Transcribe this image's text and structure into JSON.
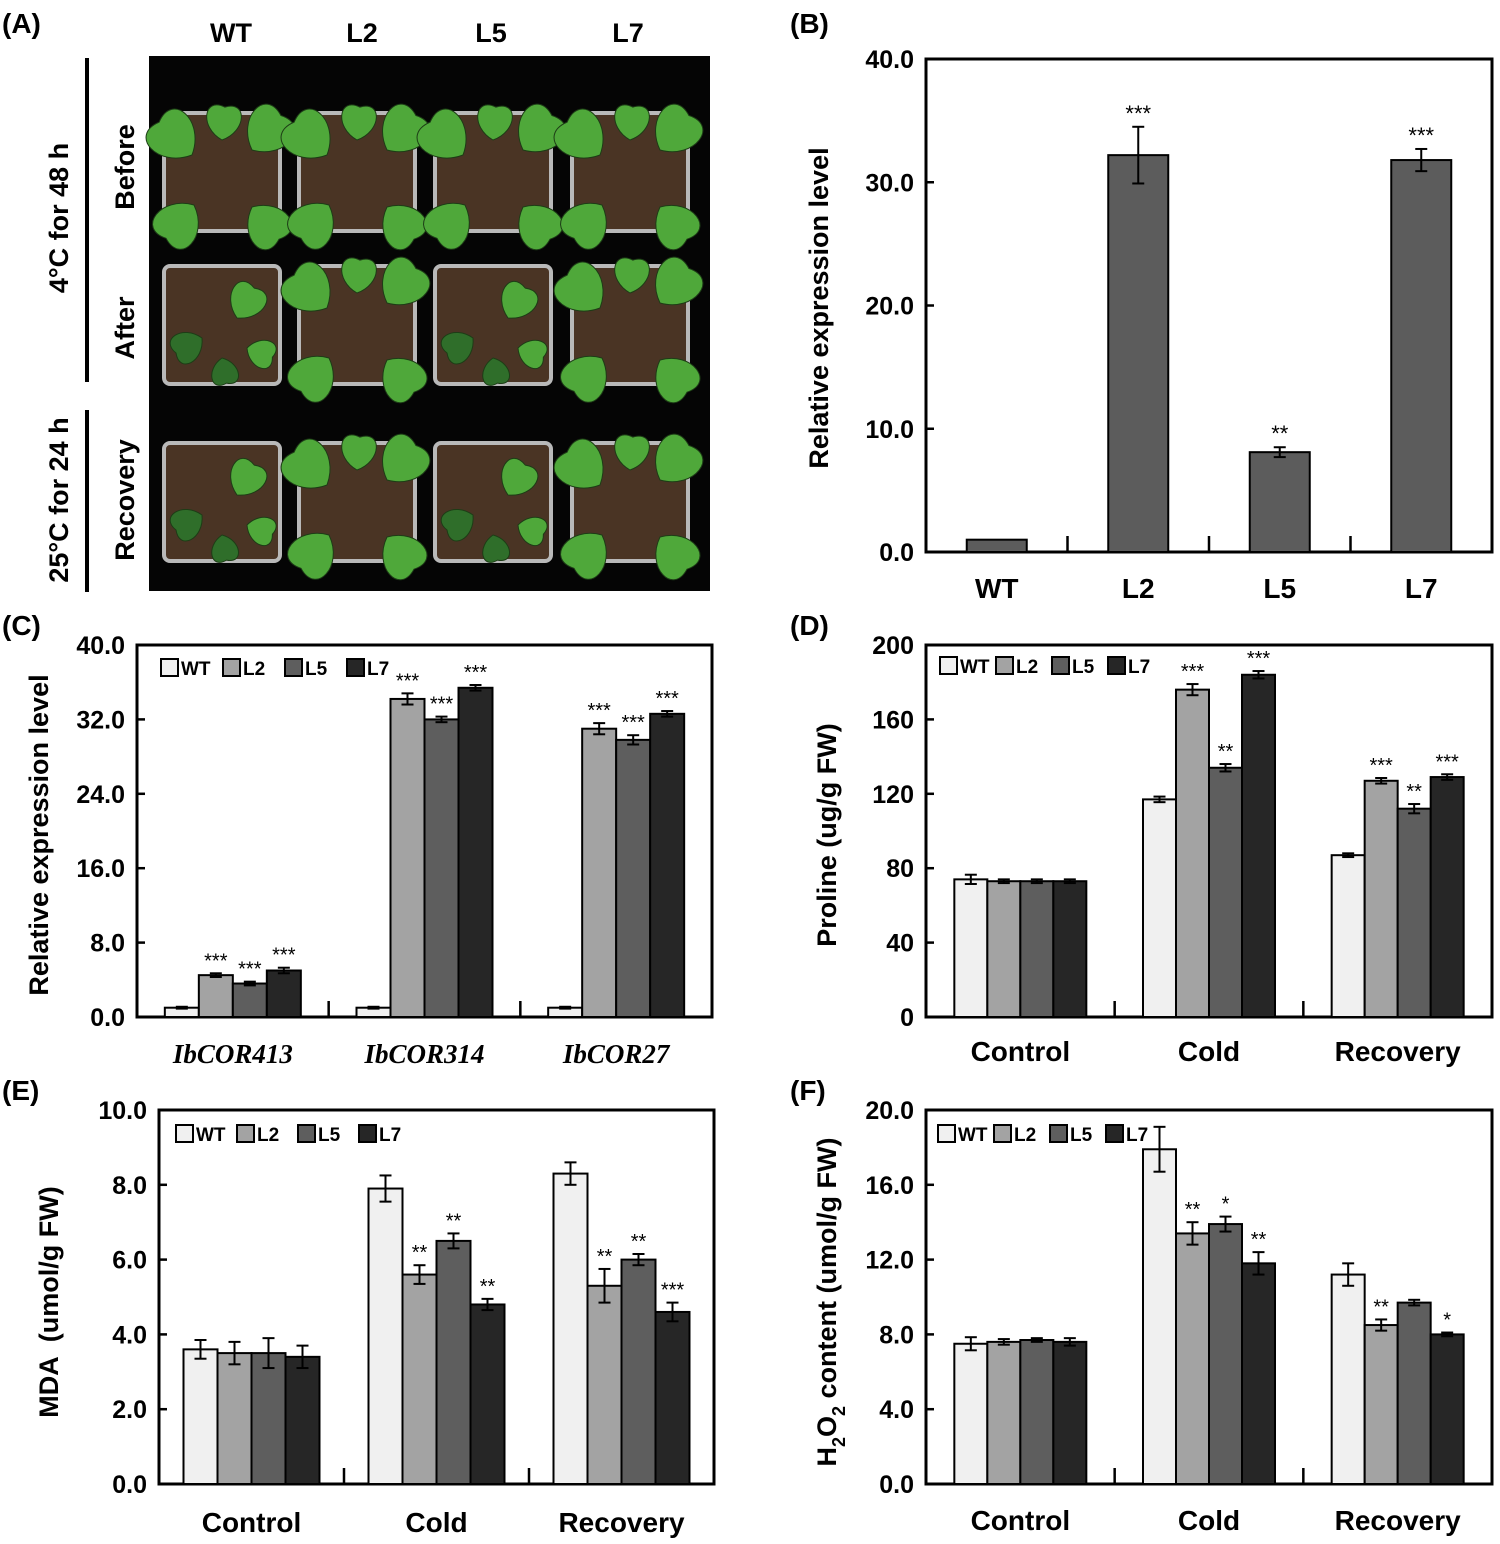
{
  "photo_panel": {
    "label": "(A)",
    "columns": [
      "WT",
      "L2",
      "L5",
      "L7"
    ],
    "rows": [
      "Before",
      "After",
      "Recovery"
    ],
    "conditions": [
      "4°C for 48 h",
      "25°C for 24 h"
    ],
    "colors": {
      "background": "#050505",
      "soil": "#4a3424",
      "leaf": "#4fa83a",
      "leaf_dark": "#2f6e2a",
      "pot": "#b9b9b9"
    }
  },
  "legend_names": [
    "WT",
    "L2",
    "L5",
    "L7"
  ],
  "colors": {
    "WT": "#f0f0f0",
    "L2": "#a3a3a3",
    "L5": "#5e5e5e",
    "L7": "#262626",
    "single": "#5c5c5c"
  },
  "chart_data": [
    {
      "panel": "(B)",
      "type": "bar",
      "title": "",
      "categories": [
        "WT",
        "L2",
        "L5",
        "L7"
      ],
      "values": [
        1.0,
        32.2,
        8.1,
        31.8
      ],
      "errors": [
        0.0,
        2.3,
        0.4,
        0.9
      ],
      "significance": [
        "",
        "***",
        "**",
        "***"
      ],
      "xlabel": "",
      "ylabel": "Relative expression level",
      "ylim": [
        0,
        40
      ],
      "yticks": [
        "0.0",
        "10.0",
        "20.0",
        "30.0",
        "40.0"
      ]
    },
    {
      "panel": "(C)",
      "type": "bar",
      "categories": [
        "IbCOR413",
        "IbCOR314",
        "IbCOR27"
      ],
      "series": [
        {
          "name": "WT",
          "values": [
            1.0,
            1.0,
            1.0
          ],
          "errors": [
            0.1,
            0.1,
            0.1
          ],
          "significance": [
            "",
            "",
            ""
          ]
        },
        {
          "name": "L2",
          "values": [
            4.5,
            34.2,
            31.0
          ],
          "errors": [
            0.2,
            0.6,
            0.6
          ],
          "significance": [
            "***",
            "***",
            "***"
          ]
        },
        {
          "name": "L5",
          "values": [
            3.6,
            32.0,
            29.8
          ],
          "errors": [
            0.2,
            0.3,
            0.5
          ],
          "significance": [
            "***",
            "***",
            "***"
          ]
        },
        {
          "name": "L7",
          "values": [
            5.0,
            35.4,
            32.6
          ],
          "errors": [
            0.3,
            0.3,
            0.3
          ],
          "significance": [
            "***",
            "***",
            "***"
          ]
        }
      ],
      "xlabel": "",
      "ylabel": "Relative expression level",
      "ylim": [
        0,
        40
      ],
      "yticks": [
        "0.0",
        "8.0",
        "16.0",
        "24.0",
        "32.0",
        "40.0"
      ]
    },
    {
      "panel": "(D)",
      "type": "bar",
      "categories": [
        "Control",
        "Cold",
        "Recovery"
      ],
      "series": [
        {
          "name": "WT",
          "values": [
            74,
            117,
            87
          ],
          "errors": [
            2.5,
            1.5,
            1.0
          ],
          "significance": [
            "",
            "",
            ""
          ]
        },
        {
          "name": "L2",
          "values": [
            73,
            176,
            127
          ],
          "errors": [
            1.0,
            3.0,
            1.5
          ],
          "significance": [
            "",
            "***",
            "***"
          ]
        },
        {
          "name": "L5",
          "values": [
            73,
            134,
            112
          ],
          "errors": [
            1.0,
            2.0,
            2.5
          ],
          "significance": [
            "",
            "**",
            "**"
          ]
        },
        {
          "name": "L7",
          "values": [
            73,
            184,
            129
          ],
          "errors": [
            1.0,
            2.0,
            1.5
          ],
          "significance": [
            "",
            "***",
            "***"
          ]
        }
      ],
      "xlabel": "",
      "ylabel": "Proline (ug/g FW)",
      "ylim": [
        0,
        200
      ],
      "yticks": [
        "0",
        "40",
        "80",
        "120",
        "160",
        "200"
      ]
    },
    {
      "panel": "(E)",
      "type": "bar",
      "categories": [
        "Control",
        "Cold",
        "Recovery"
      ],
      "series": [
        {
          "name": "WT",
          "values": [
            3.6,
            7.9,
            8.3
          ],
          "errors": [
            0.25,
            0.35,
            0.3
          ],
          "significance": [
            "",
            "",
            ""
          ]
        },
        {
          "name": "L2",
          "values": [
            3.5,
            5.6,
            5.3
          ],
          "errors": [
            0.3,
            0.25,
            0.45
          ],
          "significance": [
            "",
            "**",
            "**"
          ]
        },
        {
          "name": "L5",
          "values": [
            3.5,
            6.5,
            6.0
          ],
          "errors": [
            0.4,
            0.2,
            0.15
          ],
          "significance": [
            "",
            "**",
            "**"
          ]
        },
        {
          "name": "L7",
          "values": [
            3.4,
            4.8,
            4.6
          ],
          "errors": [
            0.3,
            0.15,
            0.25
          ],
          "significance": [
            "",
            "**",
            "***"
          ]
        }
      ],
      "xlabel": "",
      "ylabel": "MDA  (umol/g FW)",
      "ylim": [
        0,
        10
      ],
      "yticks": [
        "0.0",
        "2.0",
        "4.0",
        "6.0",
        "8.0",
        "10.0"
      ]
    },
    {
      "panel": "(F)",
      "type": "bar",
      "categories": [
        "Control",
        "Cold",
        "Recovery"
      ],
      "series": [
        {
          "name": "WT",
          "values": [
            7.5,
            17.9,
            11.2
          ],
          "errors": [
            0.35,
            1.2,
            0.6
          ],
          "significance": [
            "",
            "",
            ""
          ]
        },
        {
          "name": "L2",
          "values": [
            7.6,
            13.4,
            8.5
          ],
          "errors": [
            0.15,
            0.6,
            0.3
          ],
          "significance": [
            "",
            "**",
            "**"
          ]
        },
        {
          "name": "L5",
          "values": [
            7.7,
            13.9,
            9.7
          ],
          "errors": [
            0.1,
            0.4,
            0.15
          ],
          "significance": [
            "",
            "*",
            ""
          ]
        },
        {
          "name": "L7",
          "values": [
            7.6,
            11.8,
            8.0
          ],
          "errors": [
            0.2,
            0.6,
            0.1
          ],
          "significance": [
            "",
            "**",
            "*"
          ]
        }
      ],
      "xlabel": "",
      "ylabel_main": "H",
      "ylabel_sub": "2",
      "ylabel_mid": "O",
      "ylabel_sub2": "2",
      "ylabel_rest": " content (umol/g FW)",
      "ylim": [
        0,
        20
      ],
      "yticks": [
        "0.0",
        "4.0",
        "8.0",
        "12.0",
        "16.0",
        "20.0"
      ]
    }
  ]
}
